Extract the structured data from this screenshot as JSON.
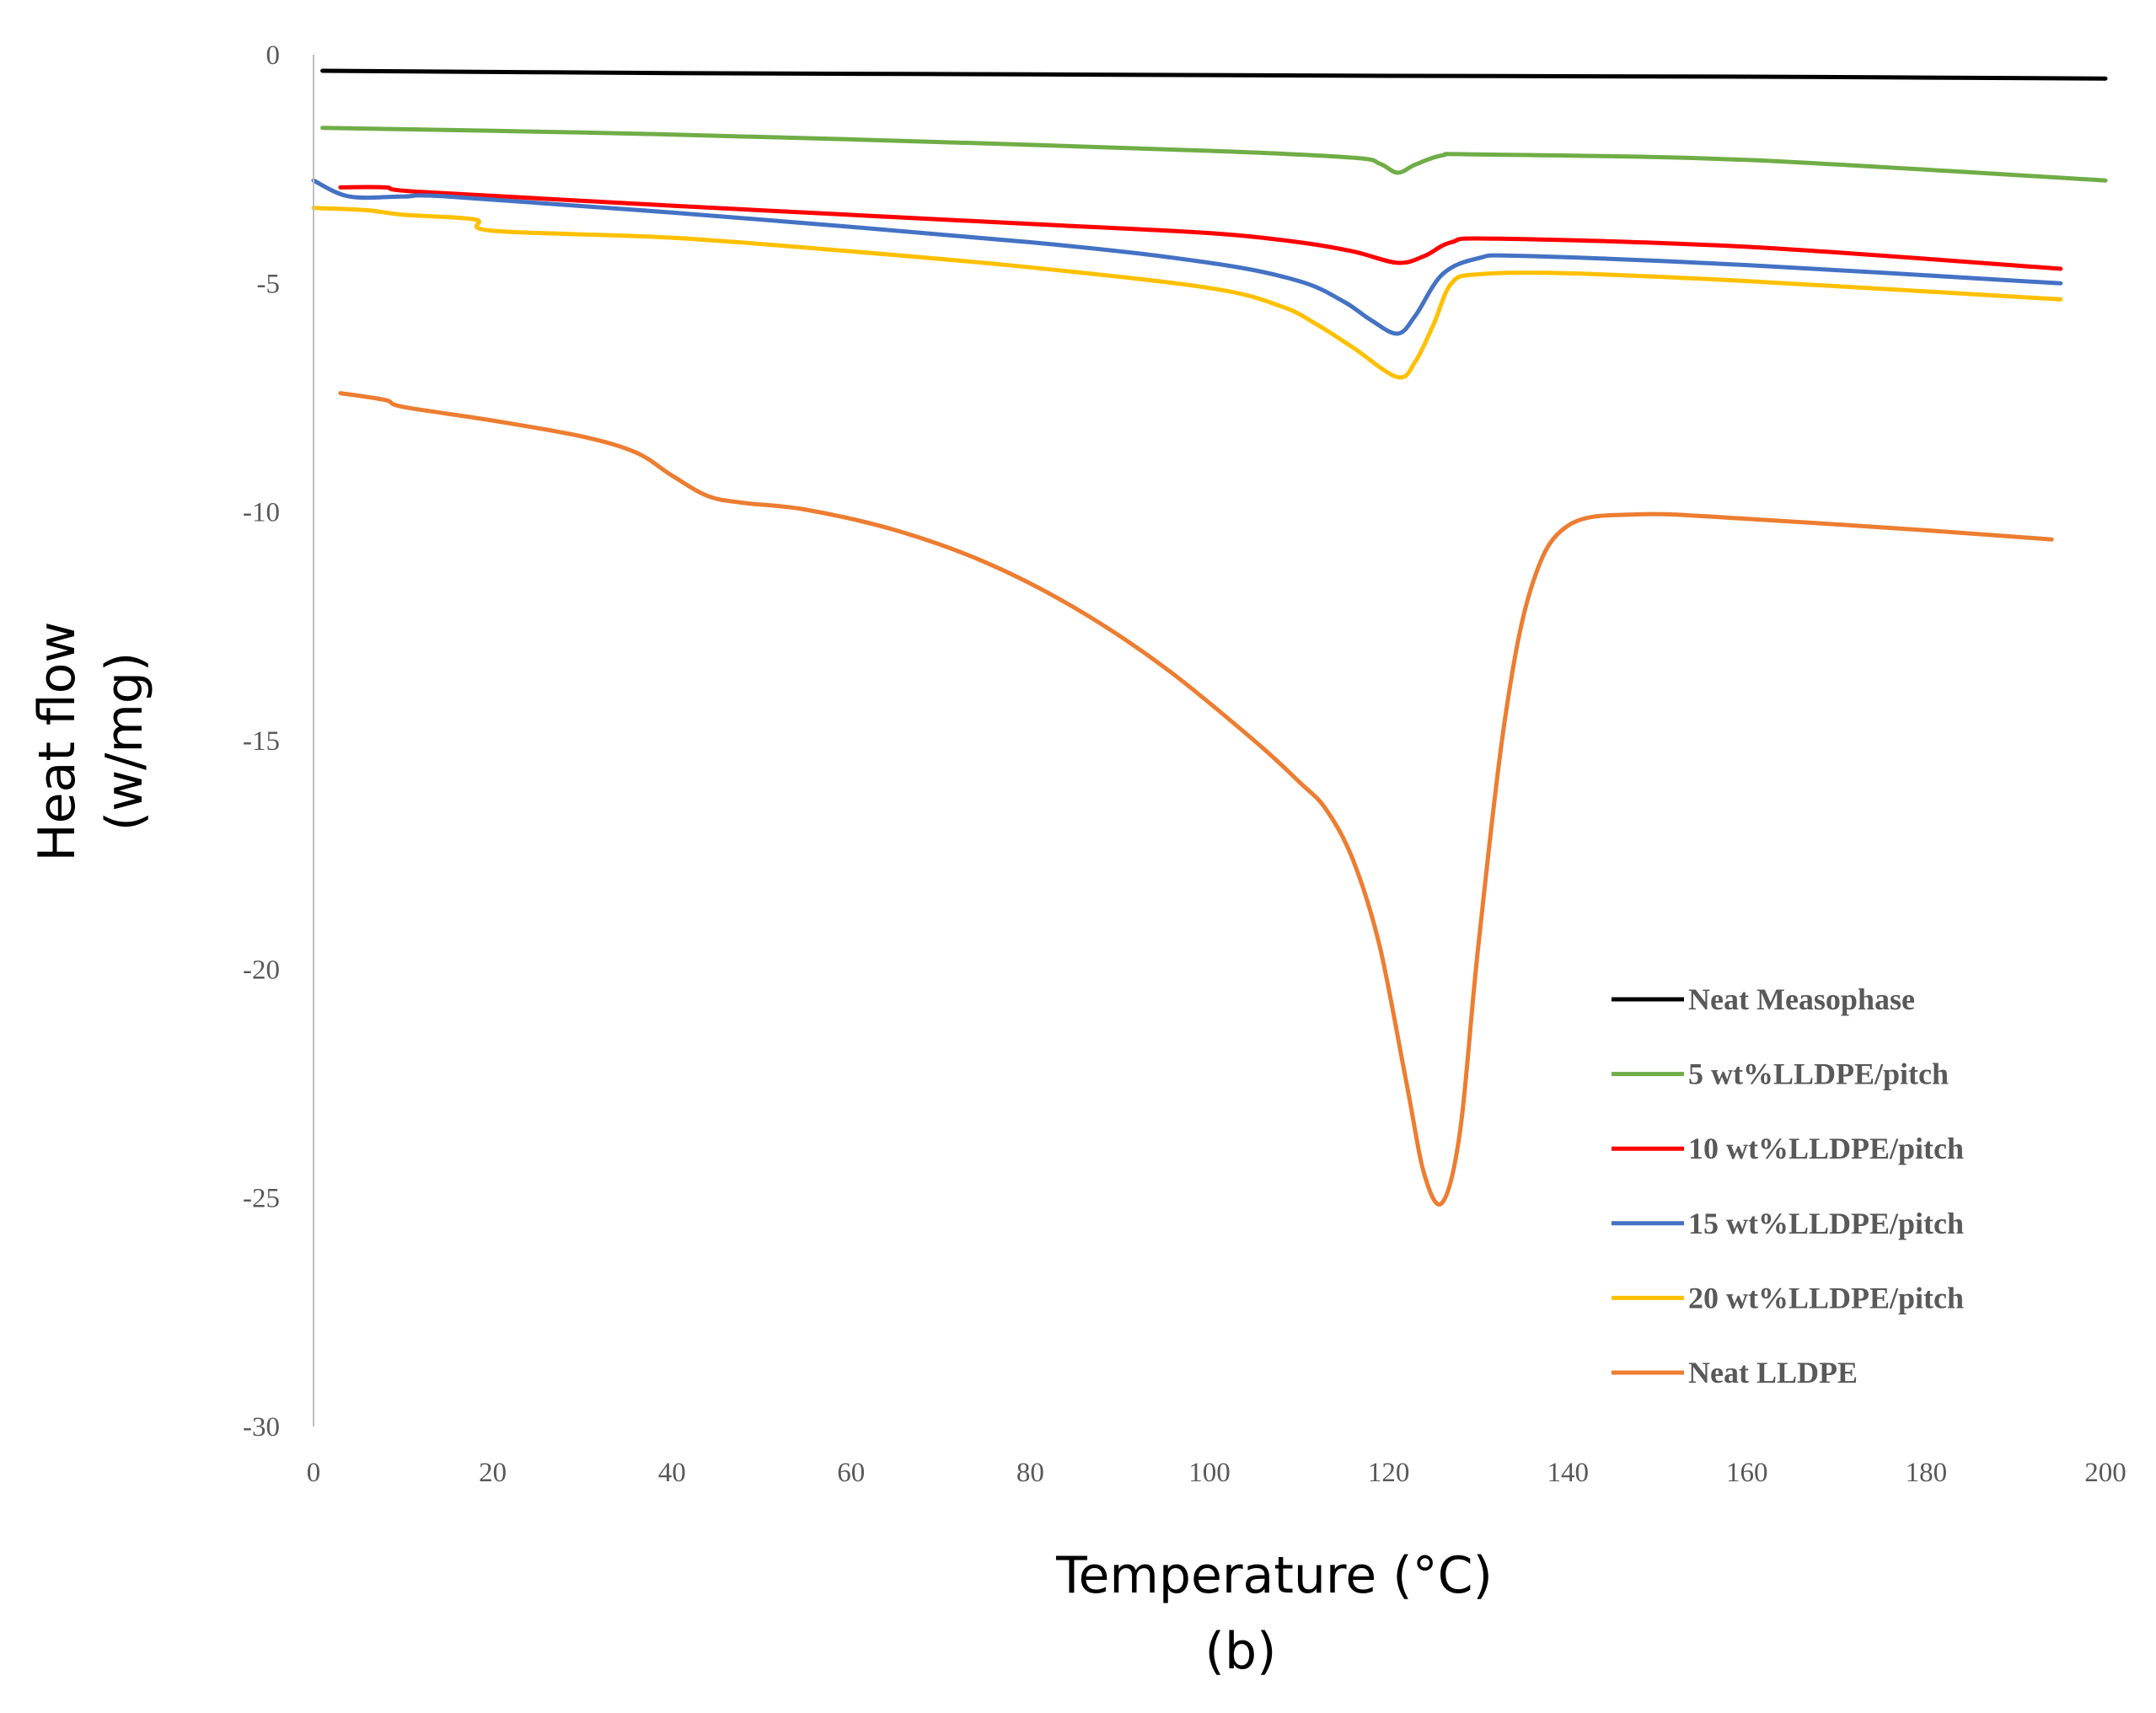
{
  "chart_data": {
    "type": "line",
    "title": "",
    "xlabel": "Temperature (°C)",
    "ylabel_lines": [
      "Heat flow",
      "(w/mg)"
    ],
    "caption": "(b)",
    "xlim": [
      0,
      200
    ],
    "ylim": [
      -30,
      0
    ],
    "x_ticks": [
      0,
      20,
      40,
      60,
      80,
      100,
      120,
      140,
      160,
      180,
      200
    ],
    "y_ticks": [
      0,
      -5,
      -10,
      -15,
      -20,
      -25,
      -30
    ],
    "grid": false,
    "legend_position": "bottom-right",
    "series": [
      {
        "name": "Neat Measophase",
        "color": "#000000",
        "points": [
          [
            1,
            -0.35
          ],
          [
            40,
            -0.4
          ],
          [
            80,
            -0.43
          ],
          [
            120,
            -0.46
          ],
          [
            160,
            -0.48
          ],
          [
            200,
            -0.52
          ]
        ]
      },
      {
        "name": "5 wt%LLDPE/pitch",
        "color": "#70AD47",
        "points": [
          [
            1,
            -1.6
          ],
          [
            30,
            -1.7
          ],
          [
            60,
            -1.85
          ],
          [
            100,
            -2.1
          ],
          [
            116,
            -2.25
          ],
          [
            119,
            -2.38
          ],
          [
            121,
            -2.58
          ],
          [
            123,
            -2.4
          ],
          [
            126,
            -2.2
          ],
          [
            130,
            -2.18
          ],
          [
            160,
            -2.3
          ],
          [
            200,
            -2.75
          ]
        ]
      },
      {
        "name": "10 wt%LLDPE/pitch",
        "color": "#FF0000",
        "points": [
          [
            3,
            -2.9
          ],
          [
            8,
            -2.9
          ],
          [
            12,
            -3.0
          ],
          [
            40,
            -3.3
          ],
          [
            80,
            -3.7
          ],
          [
            100,
            -3.9
          ],
          [
            110,
            -4.1
          ],
          [
            116,
            -4.3
          ],
          [
            121,
            -4.55
          ],
          [
            124,
            -4.4
          ],
          [
            127,
            -4.1
          ],
          [
            132,
            -4.02
          ],
          [
            160,
            -4.2
          ],
          [
            195,
            -4.68
          ]
        ]
      },
      {
        "name": "15 wt%LLDPE/pitch",
        "color": "#4472C4",
        "points": [
          [
            0,
            -2.75
          ],
          [
            4,
            -3.1
          ],
          [
            10,
            -3.1
          ],
          [
            15,
            -3.1
          ],
          [
            40,
            -3.45
          ],
          [
            80,
            -4.1
          ],
          [
            100,
            -4.55
          ],
          [
            110,
            -4.95
          ],
          [
            115,
            -5.4
          ],
          [
            118,
            -5.8
          ],
          [
            121,
            -6.1
          ],
          [
            123,
            -5.7
          ],
          [
            126,
            -4.8
          ],
          [
            130,
            -4.45
          ],
          [
            135,
            -4.4
          ],
          [
            160,
            -4.6
          ],
          [
            195,
            -5.0
          ]
        ]
      },
      {
        "name": "20 wt%LLDPE/pitch",
        "color": "#FFC000",
        "points": [
          [
            0,
            -3.35
          ],
          [
            6,
            -3.4
          ],
          [
            10,
            -3.5
          ],
          [
            18,
            -3.6
          ],
          [
            20,
            -3.85
          ],
          [
            40,
            -4.0
          ],
          [
            60,
            -4.3
          ],
          [
            80,
            -4.65
          ],
          [
            100,
            -5.1
          ],
          [
            108,
            -5.5
          ],
          [
            112,
            -5.9
          ],
          [
            116,
            -6.4
          ],
          [
            121,
            -7.05
          ],
          [
            123,
            -6.7
          ],
          [
            125,
            -5.9
          ],
          [
            127,
            -5.0
          ],
          [
            130,
            -4.8
          ],
          [
            140,
            -4.78
          ],
          [
            160,
            -4.95
          ],
          [
            195,
            -5.35
          ]
        ]
      },
      {
        "name": "Neat LLDPE",
        "color": "#ED7D31",
        "points": [
          [
            3,
            -7.4
          ],
          [
            8,
            -7.55
          ],
          [
            10,
            -7.7
          ],
          [
            20,
            -8.0
          ],
          [
            30,
            -8.35
          ],
          [
            36,
            -8.7
          ],
          [
            40,
            -9.2
          ],
          [
            44,
            -9.65
          ],
          [
            48,
            -9.8
          ],
          [
            55,
            -9.95
          ],
          [
            65,
            -10.4
          ],
          [
            75,
            -11.1
          ],
          [
            85,
            -12.1
          ],
          [
            95,
            -13.4
          ],
          [
            105,
            -15.0
          ],
          [
            110,
            -15.9
          ],
          [
            113,
            -16.5
          ],
          [
            116,
            -17.6
          ],
          [
            119,
            -19.5
          ],
          [
            122,
            -22.5
          ],
          [
            124,
            -24.5
          ],
          [
            126,
            -25.1
          ],
          [
            128,
            -23.5
          ],
          [
            130,
            -19.5
          ],
          [
            133,
            -14.5
          ],
          [
            136,
            -11.6
          ],
          [
            140,
            -10.3
          ],
          [
            148,
            -10.05
          ],
          [
            160,
            -10.15
          ],
          [
            180,
            -10.4
          ],
          [
            194,
            -10.6
          ]
        ]
      }
    ]
  }
}
